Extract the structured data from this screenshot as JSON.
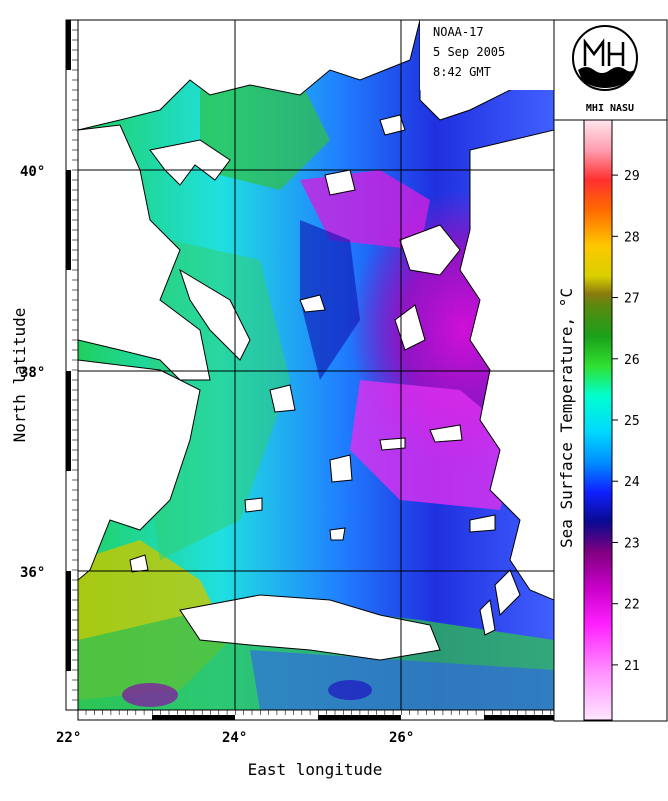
{
  "map": {
    "satellite": "NOAA-17",
    "date": "5 Sep 2005",
    "time": "8:42 GMT",
    "xlabel": "East longitude",
    "ylabel": "North latitude",
    "lon_ticks": [
      "22°",
      "24°",
      "26°"
    ],
    "lat_ticks": [
      "40°",
      "38°",
      "36°"
    ],
    "lon_range": [
      22,
      27.8
    ],
    "lat_range": [
      34.6,
      41.5
    ],
    "logo_text": "MHI NASU",
    "colors": {
      "land": "#ffffff",
      "cold": "#e800e8",
      "mid": "#00e0ff",
      "warm": "#e0e000",
      "coast": "#000000"
    }
  },
  "colorbar": {
    "title": "Sea Surface Temperature, °C",
    "ticks": [
      "29",
      "28",
      "27",
      "26",
      "25",
      "24",
      "23",
      "22",
      "21"
    ],
    "range": [
      20.1,
      29.9
    ]
  }
}
